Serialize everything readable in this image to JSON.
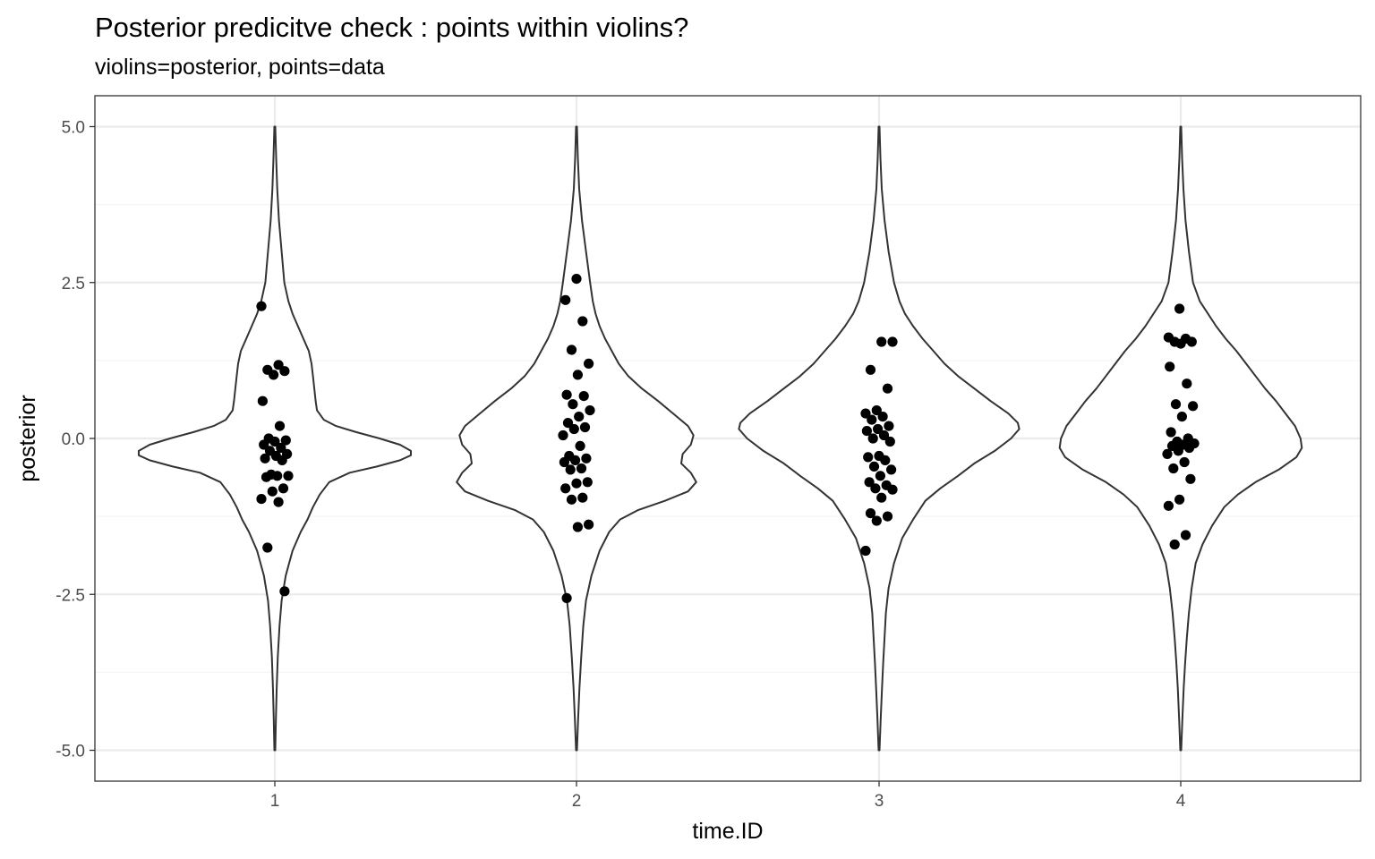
{
  "chart_data": {
    "type": "violin",
    "title": "Posterior predicitve check : points within violins?",
    "subtitle": "violins=posterior, points=data",
    "xlabel": "time.ID",
    "ylabel": "posterior",
    "categories": [
      "1",
      "2",
      "3",
      "4"
    ],
    "ylim": [
      -5.5,
      5.5
    ],
    "y_ticks": [
      -5.0,
      -2.5,
      0.0,
      2.5,
      5.0
    ],
    "y_tick_labels": [
      "-5.0",
      "-2.5",
      "0.0",
      "2.5",
      "5.0"
    ],
    "grid": true,
    "violins": [
      {
        "category": "1",
        "profile": [
          [
            5.0,
            0.003
          ],
          [
            4.5,
            0.01
          ],
          [
            4.0,
            0.018
          ],
          [
            3.5,
            0.03
          ],
          [
            3.0,
            0.05
          ],
          [
            2.5,
            0.07
          ],
          [
            2.2,
            0.1
          ],
          [
            2.0,
            0.13
          ],
          [
            1.8,
            0.17
          ],
          [
            1.6,
            0.21
          ],
          [
            1.4,
            0.25
          ],
          [
            1.2,
            0.27
          ],
          [
            1.0,
            0.28
          ],
          [
            0.8,
            0.29
          ],
          [
            0.6,
            0.3
          ],
          [
            0.45,
            0.31
          ],
          [
            0.3,
            0.36
          ],
          [
            0.2,
            0.45
          ],
          [
            0.1,
            0.6
          ],
          [
            0.0,
            0.77
          ],
          [
            -0.1,
            0.92
          ],
          [
            -0.2,
            1.0
          ],
          [
            -0.27,
            1.0
          ],
          [
            -0.35,
            0.92
          ],
          [
            -0.45,
            0.75
          ],
          [
            -0.55,
            0.55
          ],
          [
            -0.7,
            0.4
          ],
          [
            -0.9,
            0.33
          ],
          [
            -1.1,
            0.28
          ],
          [
            -1.3,
            0.24
          ],
          [
            -1.5,
            0.19
          ],
          [
            -1.8,
            0.13
          ],
          [
            -2.2,
            0.08
          ],
          [
            -2.6,
            0.05
          ],
          [
            -3.0,
            0.035
          ],
          [
            -3.5,
            0.022
          ],
          [
            -4.0,
            0.014
          ],
          [
            -4.5,
            0.008
          ],
          [
            -5.0,
            0.003
          ]
        ],
        "points": [
          2.12,
          1.18,
          1.1,
          1.08,
          1.02,
          0.6,
          0.2,
          0.0,
          -0.03,
          -0.05,
          -0.1,
          -0.15,
          -0.2,
          -0.25,
          -0.28,
          -0.32,
          -0.35,
          -0.58,
          -0.6,
          -0.6,
          -0.62,
          -0.8,
          -0.85,
          -0.97,
          -1.02,
          -1.75,
          -2.45
        ]
      },
      {
        "category": "2",
        "profile": [
          [
            5.0,
            0.003
          ],
          [
            4.5,
            0.01
          ],
          [
            4.0,
            0.02
          ],
          [
            3.5,
            0.04
          ],
          [
            3.0,
            0.07
          ],
          [
            2.5,
            0.1
          ],
          [
            2.2,
            0.12
          ],
          [
            2.0,
            0.14
          ],
          [
            1.8,
            0.17
          ],
          [
            1.6,
            0.21
          ],
          [
            1.4,
            0.26
          ],
          [
            1.2,
            0.31
          ],
          [
            1.0,
            0.38
          ],
          [
            0.8,
            0.48
          ],
          [
            0.6,
            0.6
          ],
          [
            0.4,
            0.71
          ],
          [
            0.2,
            0.82
          ],
          [
            0.05,
            0.86
          ],
          [
            -0.1,
            0.84
          ],
          [
            -0.25,
            0.78
          ],
          [
            -0.4,
            0.77
          ],
          [
            -0.55,
            0.84
          ],
          [
            -0.7,
            0.88
          ],
          [
            -0.85,
            0.82
          ],
          [
            -1.0,
            0.65
          ],
          [
            -1.15,
            0.45
          ],
          [
            -1.3,
            0.32
          ],
          [
            -1.5,
            0.24
          ],
          [
            -1.8,
            0.17
          ],
          [
            -2.2,
            0.11
          ],
          [
            -2.6,
            0.07
          ],
          [
            -3.0,
            0.05
          ],
          [
            -3.5,
            0.035
          ],
          [
            -4.0,
            0.022
          ],
          [
            -4.5,
            0.012
          ],
          [
            -5.0,
            0.003
          ]
        ],
        "points": [
          2.56,
          2.22,
          1.88,
          1.42,
          1.2,
          1.02,
          0.7,
          0.68,
          0.55,
          0.45,
          0.35,
          0.25,
          0.18,
          0.15,
          0.05,
          -0.12,
          -0.28,
          -0.32,
          -0.35,
          -0.38,
          -0.48,
          -0.5,
          -0.7,
          -0.72,
          -0.8,
          -0.95,
          -0.98,
          -1.38,
          -1.42,
          -2.56
        ]
      },
      {
        "category": "3",
        "profile": [
          [
            5.0,
            0.003
          ],
          [
            4.5,
            0.01
          ],
          [
            4.0,
            0.02
          ],
          [
            3.5,
            0.04
          ],
          [
            3.0,
            0.07
          ],
          [
            2.5,
            0.11
          ],
          [
            2.2,
            0.15
          ],
          [
            2.0,
            0.19
          ],
          [
            1.8,
            0.25
          ],
          [
            1.6,
            0.32
          ],
          [
            1.4,
            0.4
          ],
          [
            1.2,
            0.48
          ],
          [
            1.0,
            0.58
          ],
          [
            0.8,
            0.7
          ],
          [
            0.6,
            0.82
          ],
          [
            0.4,
            0.95
          ],
          [
            0.25,
            1.02
          ],
          [
            0.15,
            1.03
          ],
          [
            0.0,
            0.97
          ],
          [
            -0.2,
            0.85
          ],
          [
            -0.4,
            0.7
          ],
          [
            -0.6,
            0.58
          ],
          [
            -0.8,
            0.45
          ],
          [
            -1.0,
            0.34
          ],
          [
            -1.3,
            0.25
          ],
          [
            -1.6,
            0.17
          ],
          [
            -2.0,
            0.11
          ],
          [
            -2.4,
            0.07
          ],
          [
            -2.8,
            0.05
          ],
          [
            -3.2,
            0.04
          ],
          [
            -3.6,
            0.03
          ],
          [
            -4.0,
            0.022
          ],
          [
            -4.5,
            0.012
          ],
          [
            -5.0,
            0.003
          ]
        ],
        "points": [
          1.55,
          1.55,
          1.1,
          0.8,
          0.45,
          0.4,
          0.35,
          0.3,
          0.2,
          0.15,
          0.12,
          0.05,
          0.0,
          -0.05,
          -0.28,
          -0.3,
          -0.35,
          -0.45,
          -0.5,
          -0.6,
          -0.7,
          -0.75,
          -0.8,
          -0.82,
          -0.95,
          -1.2,
          -1.25,
          -1.32,
          -1.8
        ]
      },
      {
        "category": "4",
        "profile": [
          [
            5.0,
            0.003
          ],
          [
            4.5,
            0.01
          ],
          [
            4.0,
            0.02
          ],
          [
            3.5,
            0.035
          ],
          [
            3.0,
            0.06
          ],
          [
            2.5,
            0.09
          ],
          [
            2.2,
            0.14
          ],
          [
            2.0,
            0.2
          ],
          [
            1.8,
            0.26
          ],
          [
            1.6,
            0.33
          ],
          [
            1.4,
            0.41
          ],
          [
            1.2,
            0.48
          ],
          [
            1.0,
            0.55
          ],
          [
            0.8,
            0.62
          ],
          [
            0.6,
            0.7
          ],
          [
            0.4,
            0.77
          ],
          [
            0.2,
            0.84
          ],
          [
            0.0,
            0.88
          ],
          [
            -0.15,
            0.89
          ],
          [
            -0.3,
            0.85
          ],
          [
            -0.5,
            0.72
          ],
          [
            -0.7,
            0.55
          ],
          [
            -0.9,
            0.42
          ],
          [
            -1.1,
            0.32
          ],
          [
            -1.4,
            0.23
          ],
          [
            -1.7,
            0.16
          ],
          [
            -2.0,
            0.11
          ],
          [
            -2.4,
            0.08
          ],
          [
            -2.8,
            0.06
          ],
          [
            -3.2,
            0.045
          ],
          [
            -3.6,
            0.032
          ],
          [
            -4.0,
            0.022
          ],
          [
            -4.5,
            0.012
          ],
          [
            -5.0,
            0.003
          ]
        ],
        "points": [
          2.08,
          1.62,
          1.6,
          1.55,
          1.55,
          1.52,
          1.15,
          0.88,
          0.55,
          0.52,
          0.35,
          0.1,
          0.0,
          -0.05,
          -0.08,
          -0.1,
          -0.12,
          -0.15,
          -0.2,
          -0.25,
          -0.38,
          -0.48,
          -0.65,
          -0.98,
          -1.08,
          -1.55,
          -1.7
        ]
      }
    ]
  },
  "colors": {
    "background": "#ffffff",
    "panel_border": "#333333",
    "grid_major": "#ebebeb",
    "grid_minor": "#f5f5f5",
    "violin_line": "#333333",
    "point": "#000000",
    "tick_text": "#4d4d4d"
  }
}
